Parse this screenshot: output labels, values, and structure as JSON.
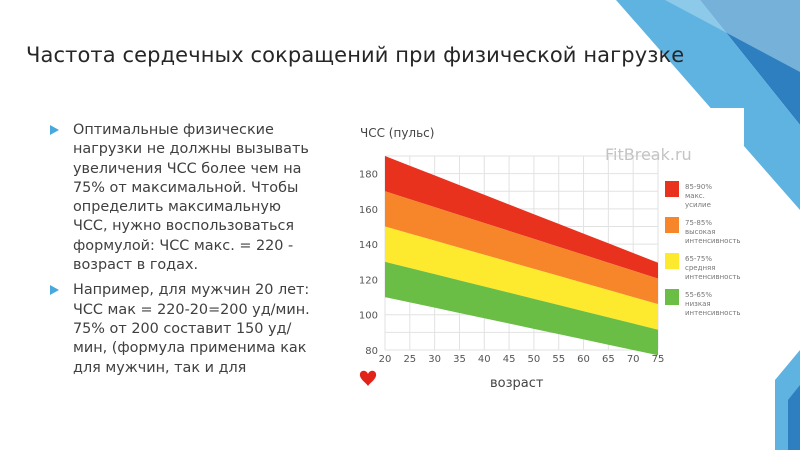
{
  "slide": {
    "title": "Частота сердечных сокращений при физической нагрузке",
    "bullets": [
      "Оптимальные физические нагрузки не должны вызывать увеличения ЧСС более чем на 75% от максимальной. Чтобы определить максимальную ЧСС, нужно воспользоваться формулой: ЧСС макс. = 220 - возраст в годах.",
      "Например, для мужчин 20 лет: ЧСС мак = 220-20=200 уд/мин. 75% от 200 составит 150 уд/мин, (формула применима как для мужчин, так и для"
    ],
    "colors": {
      "accent": "#4aa8dc",
      "deco_light": "#b3daf0",
      "deco_mid": "#5fb3e1",
      "deco_dark": "#2e7fbf"
    }
  },
  "chart_data": {
    "type": "area",
    "title": "ЧСС (пульс)",
    "watermark": "FitBreak.ru",
    "xlabel": "возраст",
    "ylabel": "ЧСС (пульс)",
    "x": [
      20,
      25,
      30,
      35,
      40,
      45,
      50,
      55,
      60,
      65,
      70,
      75
    ],
    "xlim": [
      20,
      75
    ],
    "ylim": [
      80,
      190
    ],
    "yticks": [
      80,
      100,
      120,
      140,
      160,
      180
    ],
    "grid": true,
    "legend_position": "right",
    "bands": [
      {
        "label_line1": "85-90%",
        "label_line2": "макс. усилие",
        "color": "#e8321e",
        "lower": [
          170,
          165.5,
          161,
          156.5,
          152,
          147.5,
          143,
          138.5,
          134,
          129.5,
          125,
          120.5
        ],
        "upper": [
          190,
          184.5,
          179,
          173.5,
          168,
          162.5,
          157,
          151.5,
          146,
          140.5,
          135,
          129.5
        ]
      },
      {
        "label_line1": "75-85%",
        "label_line2": "высокая интенсивность",
        "color": "#f7862a",
        "lower": [
          150,
          146,
          142,
          138,
          134,
          130,
          126,
          122,
          118,
          114,
          110,
          106
        ],
        "upper": [
          170,
          165.5,
          161,
          156.5,
          152,
          147.5,
          143,
          138.5,
          134,
          129.5,
          125,
          120.5
        ]
      },
      {
        "label_line1": "65-75%",
        "label_line2": "средняя интенсивность",
        "color": "#fde92d",
        "lower": [
          130,
          126.5,
          123,
          119.5,
          116,
          112.5,
          109,
          105.5,
          102,
          98.5,
          95,
          91.5
        ],
        "upper": [
          150,
          146,
          142,
          138,
          134,
          130,
          126,
          122,
          118,
          114,
          110,
          106
        ]
      },
      {
        "label_line1": "55-65%",
        "label_line2": "низкая интенсивность",
        "color": "#6abd45",
        "lower": [
          110,
          107,
          104,
          101,
          98,
          95,
          92,
          89,
          86,
          83,
          80,
          77
        ],
        "upper": [
          130,
          126.5,
          123,
          119.5,
          116,
          112.5,
          109,
          105.5,
          102,
          98.5,
          95,
          91.5
        ]
      }
    ],
    "heart_color": "#e2231a"
  }
}
